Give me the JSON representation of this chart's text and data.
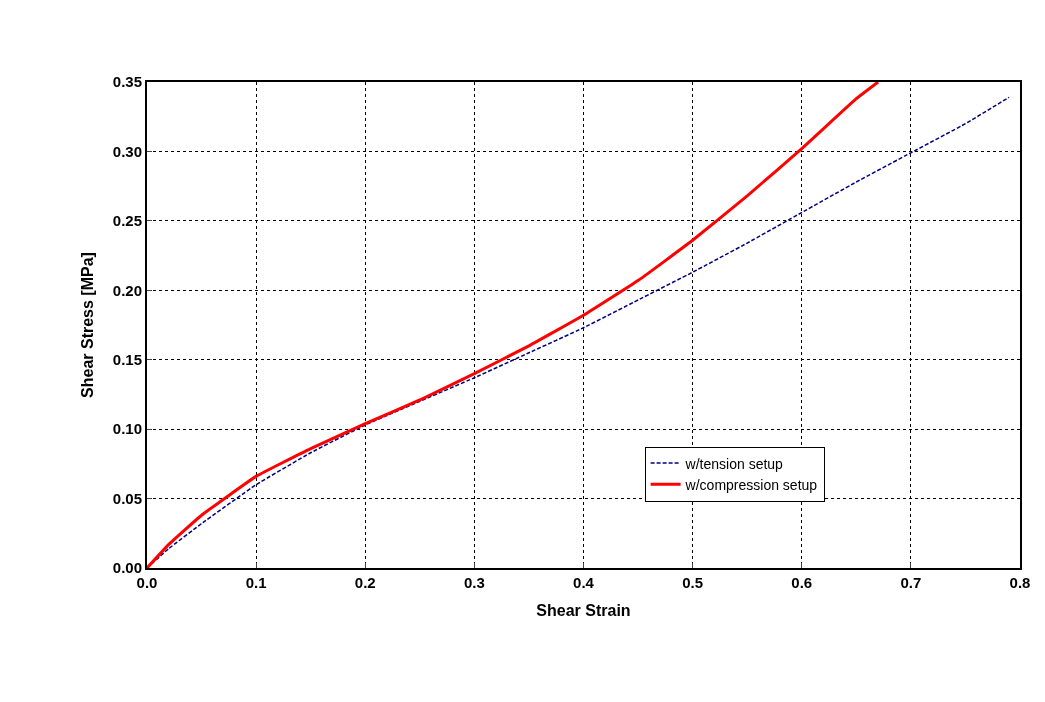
{
  "chart_data": {
    "type": "line",
    "xlabel": "Shear Strain",
    "ylabel": "Shear Stress [MPa]",
    "xlim": [
      0,
      0.8
    ],
    "xticks": [
      {
        "value": 0,
        "label": "0.0"
      },
      0.1,
      0.2,
      0.3,
      0.4,
      0.5,
      0.6,
      0.7,
      0.8
    ],
    "ylim": [
      0,
      0.35
    ],
    "yticks": [
      {
        "value": 0,
        "label": "0.00"
      },
      0.05,
      {
        "value": 0.1,
        "label": "0.10"
      },
      0.15,
      {
        "value": 0.2,
        "label": "0.20"
      },
      0.25,
      {
        "value": 0.3,
        "label": "0.30"
      },
      0.35
    ],
    "grid": true,
    "legend": "right",
    "series": [
      {
        "name": "w/tension setup",
        "color": "#000080",
        "line_style": "dashed",
        "x": [
          0,
          0.02,
          0.05,
          0.1,
          0.15,
          0.2,
          0.25,
          0.3,
          0.35,
          0.4,
          0.45,
          0.5,
          0.55,
          0.6,
          0.65,
          0.7,
          0.75,
          0.79
        ],
        "values": [
          0,
          0.014,
          0.032,
          0.06,
          0.083,
          0.103,
          0.12,
          0.137,
          0.155,
          0.173,
          0.193,
          0.213,
          0.234,
          0.256,
          0.278,
          0.299,
          0.32,
          0.339
        ]
      },
      {
        "name": "w/compression setup",
        "color": "#ff0000",
        "line_style": "solid",
        "x": [
          0,
          0.02,
          0.05,
          0.1,
          0.15,
          0.2,
          0.25,
          0.3,
          0.35,
          0.4,
          0.45,
          0.5,
          0.55,
          0.6,
          0.65,
          0.67
        ],
        "values": [
          0,
          0.017,
          0.038,
          0.066,
          0.086,
          0.104,
          0.121,
          0.14,
          0.16,
          0.182,
          0.207,
          0.236,
          0.268,
          0.302,
          0.338,
          0.35
        ]
      }
    ]
  }
}
